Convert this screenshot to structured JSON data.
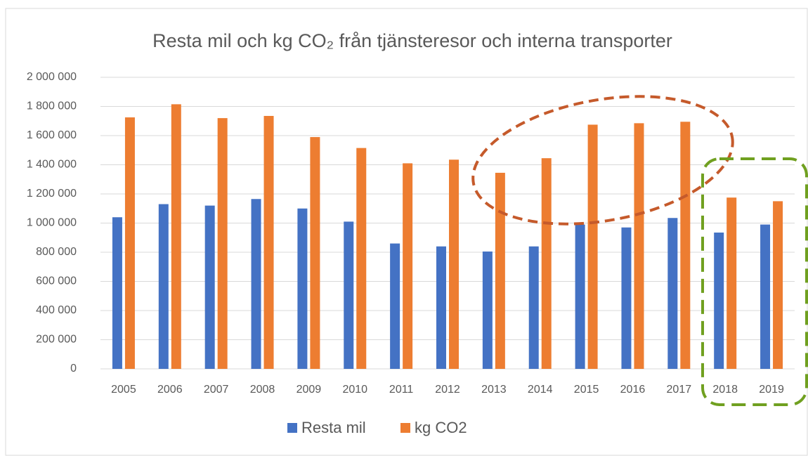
{
  "chart_data": {
    "type": "bar",
    "title": "Resta mil och kg CO₂ från tjänsteresor och interna transporter",
    "categories": [
      "2005",
      "2006",
      "2007",
      "2008",
      "2009",
      "2010",
      "2011",
      "2012",
      "2013",
      "2014",
      "2015",
      "2016",
      "2017",
      "2018",
      "2019"
    ],
    "series": [
      {
        "name": "Resta mil",
        "color": "#4472c4",
        "values": [
          1040000,
          1130000,
          1120000,
          1165000,
          1100000,
          1010000,
          860000,
          840000,
          805000,
          840000,
          990000,
          970000,
          1035000,
          935000,
          990000
        ]
      },
      {
        "name": "kg CO2",
        "color": "#ed7d31",
        "values": [
          1725000,
          1815000,
          1720000,
          1735000,
          1590000,
          1515000,
          1410000,
          1435000,
          1345000,
          1445000,
          1675000,
          1685000,
          1695000,
          1175000,
          1150000
        ]
      }
    ],
    "ylim": [
      0,
      2000000
    ],
    "yticks": [
      0,
      {
        "value": 200000,
        "label": "200 000"
      },
      {
        "value": 400000,
        "label": "400 000"
      },
      {
        "value": 600000,
        "label": "600 000"
      },
      {
        "value": 800000,
        "label": "800 000"
      },
      {
        "value": 1000000,
        "label": "1 000 000"
      },
      {
        "value": 1200000,
        "label": "1 200 000"
      },
      {
        "value": 1400000,
        "label": "1 400 000"
      },
      {
        "value": 1600000,
        "label": "1 600 000"
      },
      {
        "value": 1800000,
        "label": "1 800 000"
      },
      {
        "value": 2000000,
        "label": "2 000 000"
      }
    ],
    "grid": true,
    "legend": "bottom"
  }
}
